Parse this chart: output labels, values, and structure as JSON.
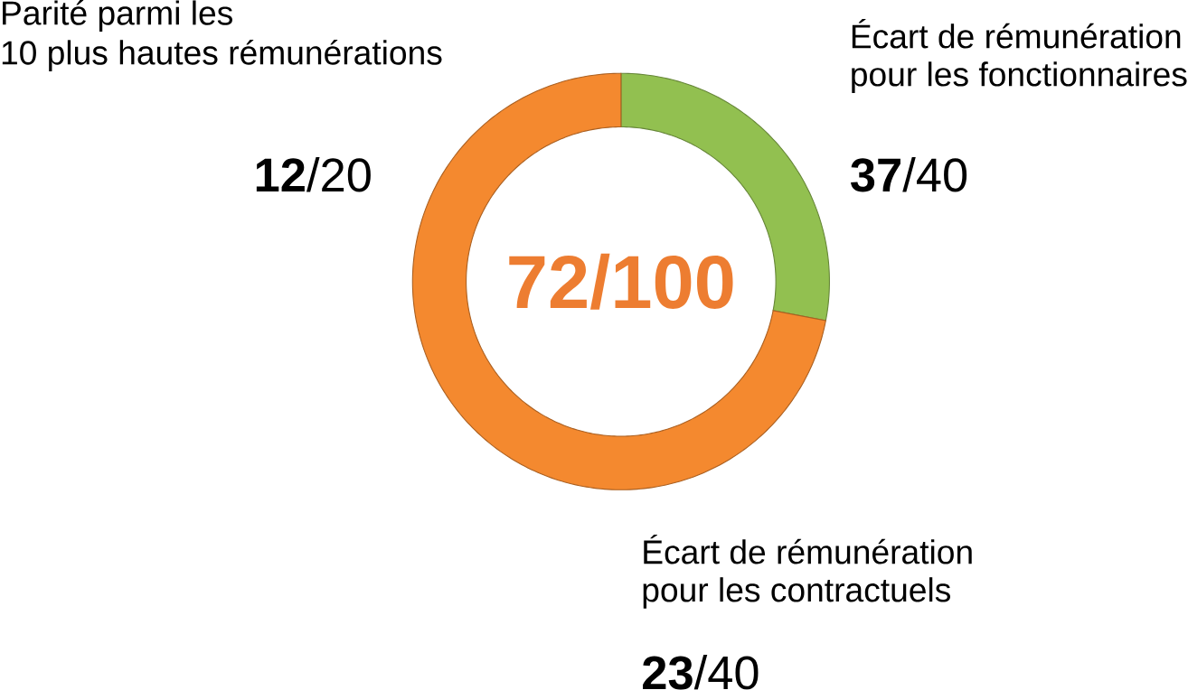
{
  "chart_data": {
    "type": "donut",
    "title": "72/100",
    "categories": [
      null,
      null
    ],
    "values": [
      28,
      72
    ],
    "colors": [
      "#92c050",
      "#f4892f"
    ],
    "annotations": [
      "Parité parmi les",
      "10 plus hautes rémunérations",
      "**12**/20",
      "Écart de rémunération",
      "pour les fonctionnaires",
      "**37**/40",
      "Écart de rémunération",
      "pour les contractuels",
      "**23**/40"
    ]
  }
}
